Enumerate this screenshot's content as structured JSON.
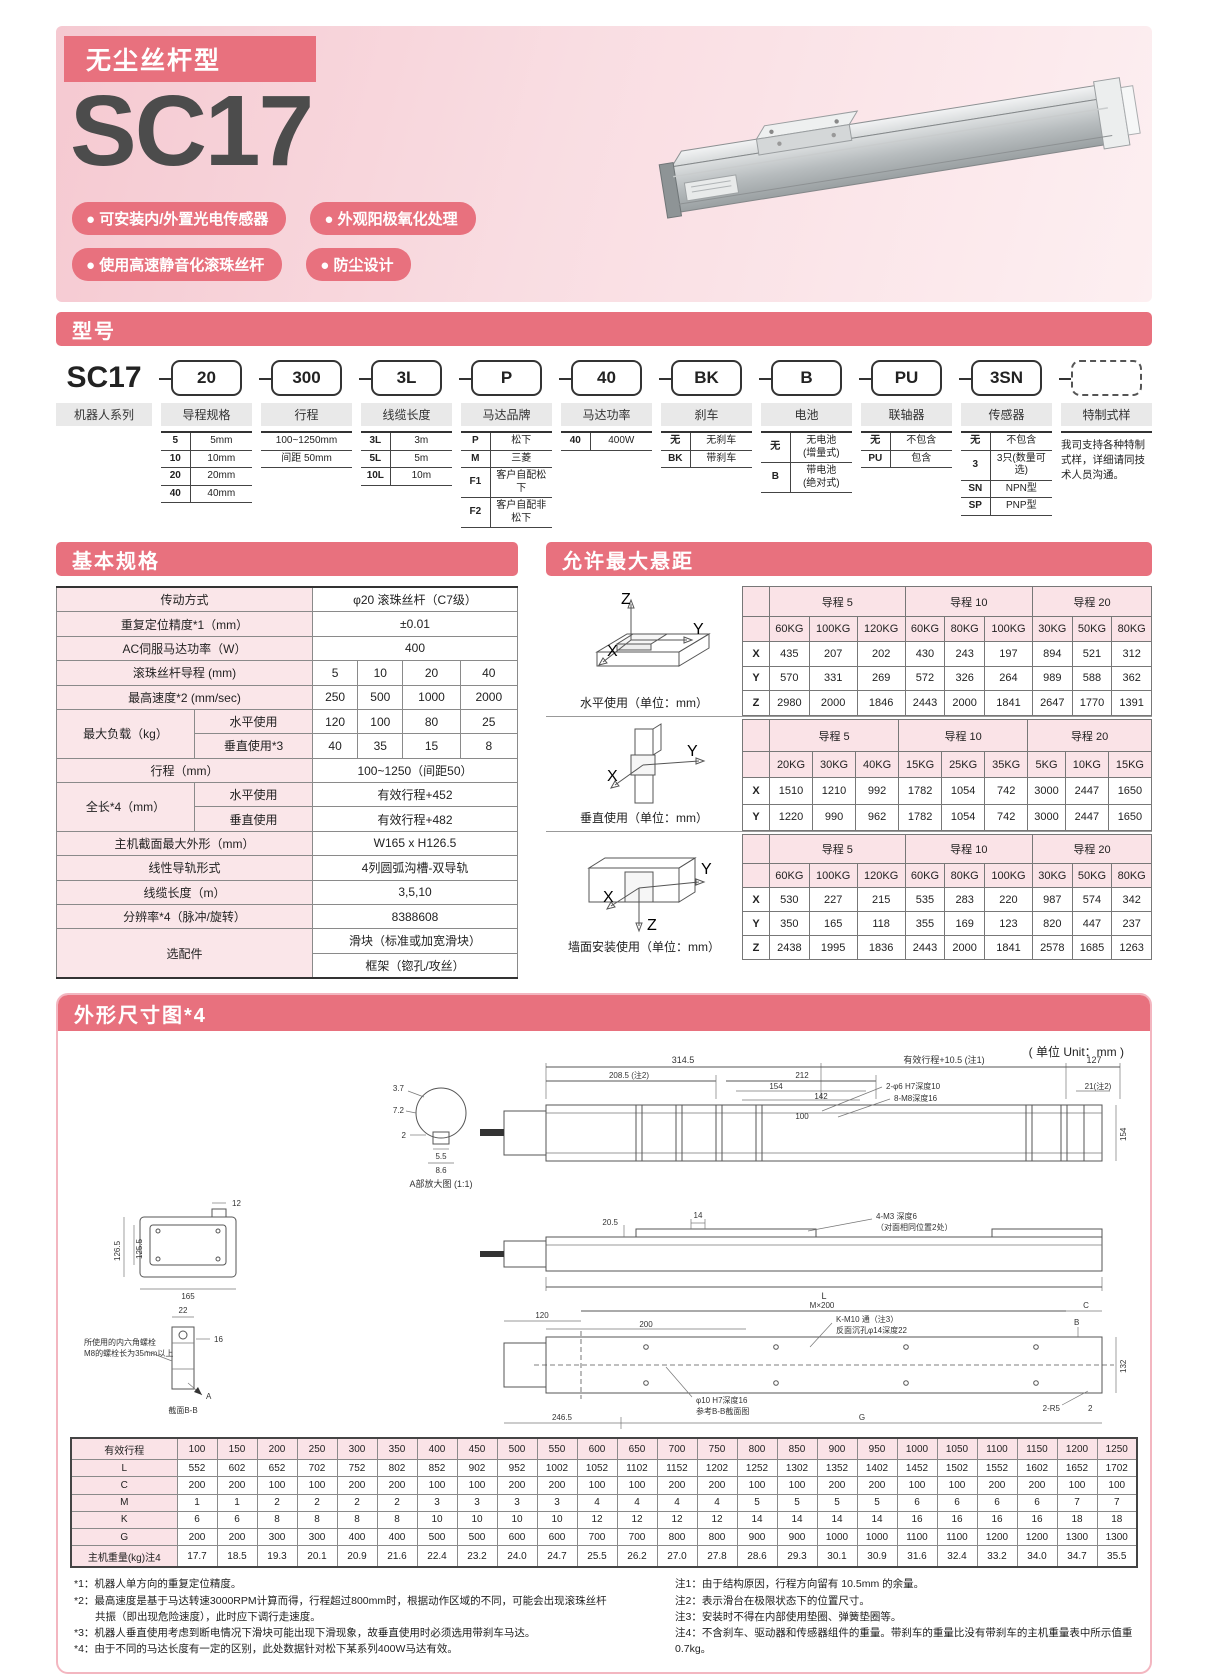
{
  "colors": {
    "accent": "#e8717e",
    "pink_light": "#fae3e7"
  },
  "hero": {
    "badge": "无尘丝杆型",
    "model": "SC17",
    "features": [
      "● 可安装内/外置光电传感器",
      "● 外观阳极氧化处理",
      "● 使用高速静音化滚珠丝杆",
      "● 防尘设计"
    ]
  },
  "model": {
    "title": "型号",
    "prefix": "SC17",
    "codes": [
      "20",
      "300",
      "3L",
      "P",
      "40",
      "BK",
      "B",
      "PU",
      "3SN"
    ],
    "cols": [
      {
        "label": "机器人系列",
        "options": []
      },
      {
        "label": "导程规格",
        "options": [
          [
            "5",
            "5mm"
          ],
          [
            "10",
            "10mm"
          ],
          [
            "20",
            "20mm"
          ],
          [
            "40",
            "40mm"
          ]
        ]
      },
      {
        "label": "行程",
        "options": [
          [
            "100~1250mm"
          ],
          [
            "间距 50mm"
          ]
        ]
      },
      {
        "label": "线缆长度",
        "options": [
          [
            "3L",
            "3m"
          ],
          [
            "5L",
            "5m"
          ],
          [
            "10L",
            "10m"
          ]
        ]
      },
      {
        "label": "马达品牌",
        "options": [
          [
            "P",
            "松下"
          ],
          [
            "M",
            "三菱"
          ],
          [
            "F1",
            "客户自配松下"
          ],
          [
            "F2",
            "客户自配非松下"
          ]
        ]
      },
      {
        "label": "马达功率",
        "options": [
          [
            "40",
            "400W"
          ]
        ]
      },
      {
        "label": "刹车",
        "options": [
          [
            "无",
            "无刹车"
          ],
          [
            "BK",
            "带刹车"
          ]
        ]
      },
      {
        "label": "电池",
        "options": [
          [
            "无",
            "无电池\n(增量式)"
          ],
          [
            "B",
            "带电池\n(绝对式)"
          ]
        ]
      },
      {
        "label": "联轴器",
        "options": [
          [
            "无",
            "不包含"
          ],
          [
            "PU",
            "包含"
          ]
        ]
      },
      {
        "label": "传感器",
        "options": [
          [
            "无",
            "不包含"
          ],
          [
            "3",
            "3只(数量可选)"
          ],
          [
            "SN",
            "NPN型"
          ],
          [
            "SP",
            "PNP型"
          ]
        ]
      },
      {
        "label": "特制式样",
        "note": "我司支持各种特制式样，详细请同技术人员沟通。"
      }
    ]
  },
  "basic": {
    "title": "基本规格",
    "drive": {
      "label": "传动方式",
      "value": "φ20 滚珠丝杆（C7级）"
    },
    "repeat": {
      "label": "重复定位精度*1（mm）",
      "value": "±0.01"
    },
    "power": {
      "label": "AC伺服马达功率（W）",
      "value": "400"
    },
    "lead": {
      "label": "滚珠丝杆导程 (mm)",
      "values": [
        "5",
        "10",
        "20",
        "40"
      ]
    },
    "speed": {
      "label": "最高速度*2 (mm/sec)",
      "values": [
        "250",
        "500",
        "1000",
        "2000"
      ]
    },
    "load": {
      "label": "最大负载（kg）",
      "h_label": "水平使用",
      "h_values": [
        "120",
        "100",
        "80",
        "25"
      ],
      "v_label": "垂直使用*3",
      "v_values": [
        "40",
        "35",
        "15",
        "8"
      ]
    },
    "stroke": {
      "label": "行程（mm）",
      "value": "100~1250（间距50）"
    },
    "length": {
      "label": "全长*4（mm）",
      "h_label": "水平使用",
      "h_value": "有效行程+452",
      "v_label": "垂直使用",
      "v_value": "有效行程+482"
    },
    "section": {
      "label": "主机截面最大外形（mm）",
      "value": "W165 x H126.5"
    },
    "rail": {
      "label": "线性导轨形式",
      "value": "4列圆弧沟槽-双导轨"
    },
    "cable": {
      "label": "线缆长度（m）",
      "value": "3,5,10"
    },
    "resolution": {
      "label": "分辨率*4（脉冲/旋转）",
      "value": "8388608"
    },
    "options": {
      "label": "选配件",
      "value1": "滑块（标准或加宽滑块）",
      "value2": "框架（锪孔/攻丝）"
    }
  },
  "overhang": {
    "title": "允许最大悬距",
    "axes": {
      "x": "X",
      "y": "Y",
      "z": "Z"
    },
    "tables": [
      {
        "caption": "水平使用（单位：mm）",
        "groups": [
          "导程 5",
          "导程 10",
          "导程 20"
        ],
        "head": [
          "",
          "60KG",
          "100KG",
          "120KG",
          "60KG",
          "80KG",
          "100KG",
          "30KG",
          "50KG",
          "80KG"
        ],
        "rows": [
          [
            "X",
            "435",
            "207",
            "202",
            "430",
            "243",
            "197",
            "894",
            "521",
            "312"
          ],
          [
            "Y",
            "570",
            "331",
            "269",
            "572",
            "326",
            "264",
            "989",
            "588",
            "362"
          ],
          [
            "Z",
            "2980",
            "2000",
            "1846",
            "2443",
            "2000",
            "1841",
            "2647",
            "1770",
            "1391"
          ]
        ]
      },
      {
        "caption": "垂直使用（单位：mm）",
        "groups": [
          "导程 5",
          "导程 10",
          "导程 20"
        ],
        "head": [
          "",
          "20KG",
          "30KG",
          "40KG",
          "15KG",
          "25KG",
          "35KG",
          "5KG",
          "10KG",
          "15KG"
        ],
        "rows": [
          [
            "X",
            "1510",
            "1210",
            "992",
            "1782",
            "1054",
            "742",
            "3000",
            "2447",
            "1650"
          ],
          [
            "Y",
            "1220",
            "990",
            "962",
            "1782",
            "1054",
            "742",
            "3000",
            "2447",
            "1650"
          ]
        ]
      },
      {
        "caption": "墙面安装使用（单位：mm）",
        "groups": [
          "导程 5",
          "导程 10",
          "导程 20"
        ],
        "head": [
          "",
          "60KG",
          "100KG",
          "120KG",
          "60KG",
          "80KG",
          "100KG",
          "30KG",
          "50KG",
          "80KG"
        ],
        "rows": [
          [
            "X",
            "530",
            "227",
            "215",
            "535",
            "283",
            "220",
            "987",
            "574",
            "342"
          ],
          [
            "Y",
            "350",
            "165",
            "118",
            "355",
            "169",
            "123",
            "820",
            "447",
            "237"
          ],
          [
            "Z",
            "2438",
            "1995",
            "1836",
            "2443",
            "2000",
            "1841",
            "2578",
            "1685",
            "1263"
          ]
        ]
      }
    ]
  },
  "dims": {
    "title": "外形尺寸图*4",
    "unit_note": "( 单位 Unit：mm )",
    "top": {
      "d314": "314.5",
      "deff": "有效行程+10.5 (注1)",
      "d127": "127",
      "d208": "208.5 (注2)",
      "d212": "212",
      "d154": "154",
      "d142": "142",
      "d100": "100",
      "hole1": "2-φ6 H7深度10",
      "hole2": "8-M8深度16",
      "d21": "21(注2)",
      "d154r": "154",
      "sec": "A部放大图 (1:1)",
      "s37": "3.7",
      "s72": "7.2",
      "s2": "2",
      "s55": "5.5",
      "s86": "8.6"
    },
    "mid": {
      "d1265": "126.5",
      "d1255": "125.5",
      "d165": "165",
      "d12": "12",
      "d205": "20.5",
      "d14": "14",
      "hole1": "4-M3 深度6",
      "hole2": "（对面相同位置2处）",
      "dL": "L"
    },
    "bot": {
      "d120": "120",
      "d200": "200",
      "dmx": "M×200",
      "dC": "C",
      "dB": "B",
      "hole1": "K-M10 通（注3）",
      "hole2": "反面沉孔φ14深度22",
      "d132": "132",
      "hole3": "φ10 H7深度16",
      "hole4": "参考B-B截面图",
      "d2r5": "2-R5",
      "d2465": "246.5",
      "dG": "G",
      "d2": "2",
      "note1": "所使用的内六角螺栓",
      "note2": "M8的螺栓长为35mm以上",
      "sec": "截面B-B",
      "s22": "22",
      "s16": "16",
      "dA": "A"
    }
  },
  "stroke_table": {
    "rows": [
      [
        "有效行程",
        "100",
        "150",
        "200",
        "250",
        "300",
        "350",
        "400",
        "450",
        "500",
        "550",
        "600",
        "650",
        "700",
        "750",
        "800",
        "850",
        "900",
        "950",
        "1000",
        "1050",
        "1100",
        "1150",
        "1200",
        "1250"
      ],
      [
        "L",
        "552",
        "602",
        "652",
        "702",
        "752",
        "802",
        "852",
        "902",
        "952",
        "1002",
        "1052",
        "1102",
        "1152",
        "1202",
        "1252",
        "1302",
        "1352",
        "1402",
        "1452",
        "1502",
        "1552",
        "1602",
        "1652",
        "1702"
      ],
      [
        "C",
        "200",
        "200",
        "100",
        "100",
        "200",
        "200",
        "100",
        "100",
        "200",
        "200",
        "100",
        "100",
        "200",
        "200",
        "100",
        "100",
        "200",
        "200",
        "100",
        "100",
        "200",
        "200",
        "100",
        "100"
      ],
      [
        "M",
        "1",
        "1",
        "2",
        "2",
        "2",
        "2",
        "3",
        "3",
        "3",
        "3",
        "4",
        "4",
        "4",
        "4",
        "5",
        "5",
        "5",
        "5",
        "6",
        "6",
        "6",
        "6",
        "7",
        "7"
      ],
      [
        "K",
        "6",
        "6",
        "8",
        "8",
        "8",
        "8",
        "10",
        "10",
        "10",
        "10",
        "12",
        "12",
        "12",
        "12",
        "14",
        "14",
        "14",
        "14",
        "16",
        "16",
        "16",
        "16",
        "18",
        "18"
      ],
      [
        "G",
        "200",
        "200",
        "300",
        "300",
        "400",
        "400",
        "500",
        "500",
        "600",
        "600",
        "700",
        "700",
        "800",
        "800",
        "900",
        "900",
        "1000",
        "1000",
        "1100",
        "1100",
        "1200",
        "1200",
        "1300",
        "1300"
      ],
      [
        "主机重量(kg)注4",
        "17.7",
        "18.5",
        "19.3",
        "20.1",
        "20.9",
        "21.6",
        "22.4",
        "23.2",
        "24.0",
        "24.7",
        "25.5",
        "26.2",
        "27.0",
        "27.8",
        "28.6",
        "29.3",
        "30.1",
        "30.9",
        "31.6",
        "32.4",
        "33.2",
        "34.0",
        "34.7",
        "35.5"
      ]
    ]
  },
  "footnotes": {
    "left": [
      "*1：机器人单方向的重复定位精度。",
      "*2：最高速度是基于马达转速3000RPM计算而得，行程超过800mm时，根据动作区域的不同，可能会出现滚珠丝杆",
      "　　共振（即出现危险速度），此时应下调行走速度。",
      "*3：机器人垂直使用考虑到断电情况下滑块可能出现下滑现象，故垂直使用时必须选用带刹车马达。",
      "*4：由于不同的马达长度有一定的区别，此处数据针对松下某系列400W马达有效。"
    ],
    "right": [
      "注1：由于结构原因，行程方向留有 10.5mm 的余量。",
      "注2：表示滑台在极限状态下的位置尺寸。",
      "注3：安装时不得在内部使用垫圈、弹簧垫圈等。",
      "注4：不含刹车、驱动器和传感器组件的重量。带刹车的重量比没有带刹车的主机重量表中所示值重 0.7kg。"
    ]
  }
}
